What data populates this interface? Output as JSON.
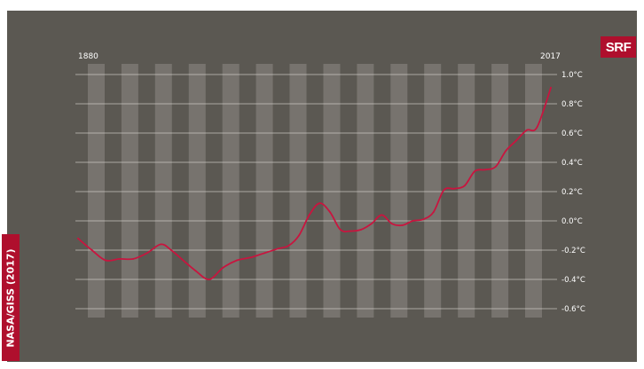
{
  "brand": {
    "logo_text": "SRF",
    "logo_color": "#af0f2d"
  },
  "source_label": "NASA/GISS (2017)",
  "colors": {
    "background": "#5b5852",
    "line": "#c8153f",
    "gridline": "#d8d6d0",
    "bands": "#7a7771",
    "text": "#ffffff"
  },
  "chart_data": {
    "type": "line",
    "x_start_label": "1880",
    "x_end_label": "2017",
    "xlim": [
      1880,
      2017
    ],
    "ylim": [
      -0.6,
      1.0
    ],
    "y_ticks": [
      1.0,
      0.8,
      0.6,
      0.4,
      0.2,
      0.0,
      -0.2,
      -0.4,
      -0.6
    ],
    "y_tick_labels": [
      "1.0°C",
      "0.8°C",
      "0.6°C",
      "0.4°C",
      "0.2°C",
      "0.0°C",
      "-0.2°C",
      "-0.4°C",
      "-0.6°C"
    ],
    "band_count": 14,
    "series": [
      {
        "x": [
          1880,
          1884,
          1888,
          1892,
          1896,
          1900,
          1904,
          1907,
          1910,
          1914,
          1918,
          1922,
          1926,
          1930,
          1934,
          1938,
          1941,
          1944,
          1947,
          1950,
          1953,
          1956,
          1959,
          1962,
          1965,
          1968,
          1971,
          1974,
          1977,
          1980,
          1983,
          1986,
          1989,
          1992,
          1995,
          1998,
          2001,
          2004,
          2007,
          2010,
          2013,
          2017
        ],
        "y": [
          -0.12,
          -0.2,
          -0.27,
          -0.26,
          -0.26,
          -0.22,
          -0.16,
          -0.2,
          -0.26,
          -0.34,
          -0.4,
          -0.32,
          -0.27,
          -0.25,
          -0.22,
          -0.19,
          -0.17,
          -0.1,
          0.04,
          0.12,
          0.06,
          -0.06,
          -0.07,
          -0.06,
          -0.02,
          0.04,
          -0.02,
          -0.03,
          0.0,
          0.01,
          0.06,
          0.21,
          0.22,
          0.24,
          0.34,
          0.35,
          0.37,
          0.48,
          0.55,
          0.62,
          0.64,
          0.91
        ]
      }
    ],
    "grid": true,
    "legend": "none"
  }
}
